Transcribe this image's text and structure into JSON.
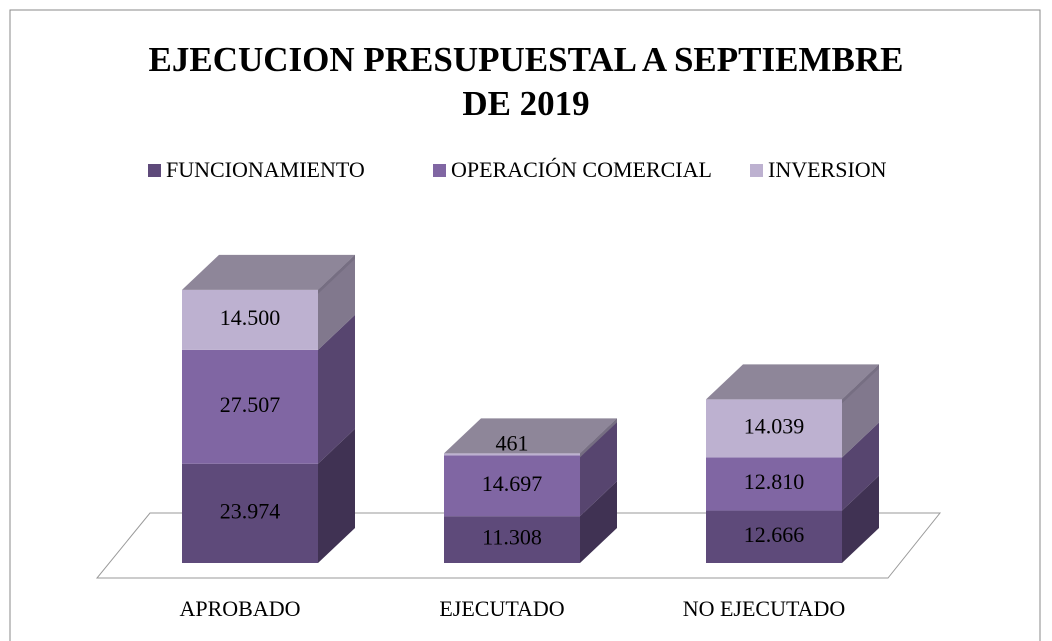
{
  "chart_data": {
    "type": "bar3d_stacked",
    "title": "EJECUCION PRESUPUESTAL A SEPTIEMBRE DE 2019",
    "categories": [
      "APROBADO",
      "EJECUTADO",
      "NO EJECUTADO"
    ],
    "series": [
      {
        "name": "FUNCIONAMIENTO",
        "color": "#5e4a7a",
        "values": [
          23974,
          11308,
          12666
        ],
        "value_labels": [
          "23.974",
          "11.308",
          "12.666"
        ]
      },
      {
        "name": "OPERACIÓN COMERCIAL",
        "color": "#8066a3",
        "values": [
          27507,
          14697,
          12810
        ],
        "value_labels": [
          "27.507",
          "14.697",
          "12.810"
        ]
      },
      {
        "name": "INVERSION",
        "color": "#bdb1d0",
        "values": [
          14500,
          461,
          14039
        ],
        "value_labels": [
          "14.500",
          "461",
          "14.039"
        ]
      }
    ],
    "legend": "top"
  }
}
